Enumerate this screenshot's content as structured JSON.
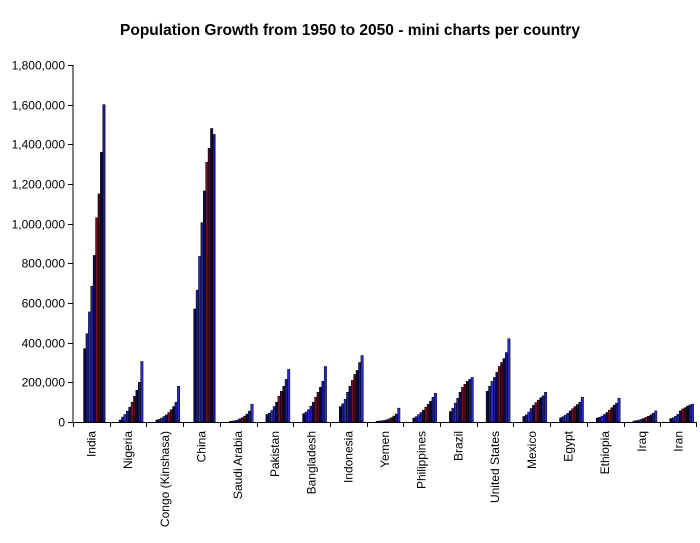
{
  "chart_data": {
    "type": "bar",
    "title": "Population Growth from 1950 to 2050 - mini charts per country",
    "xlabel": "",
    "ylabel": "",
    "ylim": [
      0,
      1800000
    ],
    "yticks": [
      0,
      200000,
      400000,
      600000,
      800000,
      1000000,
      1200000,
      1400000,
      1600000,
      1800000
    ],
    "ytick_labels": [
      "0",
      "200,000",
      "400,000",
      "600,000",
      "800,000",
      "1,000,000",
      "1,200,000",
      "1,400,000",
      "1,600,000",
      "1,800,000"
    ],
    "grid": false,
    "legend": "none",
    "bar_colors": [
      "#0a0a3a",
      "#1a1a8c",
      "#2b2bd0",
      "#1f1f9a",
      "#0c0c55",
      "#7a0f24",
      "#4a0a18"
    ],
    "countries": [
      {
        "name": "India",
        "values": [
          370000,
          445000,
          555000,
          685000,
          840000,
          1030000,
          1150000,
          1360000,
          1600000
        ]
      },
      {
        "name": "Nigeria",
        "values": [
          10000,
          25000,
          38000,
          55000,
          75000,
          100000,
          130000,
          160000,
          200000,
          305000
        ]
      },
      {
        "name": "Congo (Kinshasa)",
        "values": [
          10000,
          14000,
          20000,
          28000,
          36000,
          48000,
          62000,
          78000,
          100000,
          180000
        ]
      },
      {
        "name": "China",
        "values": [
          570000,
          665000,
          835000,
          1005000,
          1165000,
          1310000,
          1380000,
          1480000,
          1450000
        ]
      },
      {
        "name": "Saudi Arabia",
        "values": [
          3000,
          5000,
          7000,
          10000,
          16000,
          22000,
          30000,
          40000,
          55000,
          90000
        ]
      },
      {
        "name": "Pakistan",
        "values": [
          38000,
          45000,
          58000,
          78000,
          100000,
          130000,
          155000,
          180000,
          215000,
          265000
        ]
      },
      {
        "name": "Bangladesh",
        "values": [
          42000,
          50000,
          62000,
          80000,
          100000,
          125000,
          150000,
          175000,
          205000,
          280000
        ]
      },
      {
        "name": "Indonesia",
        "values": [
          78000,
          92000,
          115000,
          150000,
          180000,
          210000,
          240000,
          260000,
          300000,
          335000
        ]
      },
      {
        "name": "Yemen",
        "values": [
          4000,
          5000,
          6000,
          8000,
          11000,
          16000,
          22000,
          30000,
          40000,
          70000
        ]
      },
      {
        "name": "Philippines",
        "values": [
          20000,
          27000,
          37000,
          48000,
          60000,
          75000,
          90000,
          105000,
          125000,
          145000
        ]
      },
      {
        "name": "Brazil",
        "values": [
          53000,
          70000,
          95000,
          120000,
          150000,
          175000,
          190000,
          205000,
          215000,
          225000
        ]
      },
      {
        "name": "United States",
        "values": [
          155000,
          180000,
          205000,
          225000,
          250000,
          280000,
          300000,
          320000,
          350000,
          420000
        ]
      },
      {
        "name": "Mexico",
        "values": [
          28000,
          36000,
          50000,
          68000,
          84000,
          98000,
          110000,
          122000,
          132000,
          150000
        ]
      },
      {
        "name": "Egypt",
        "values": [
          21000,
          27000,
          35000,
          44000,
          56000,
          67000,
          78000,
          88000,
          100000,
          125000
        ]
      },
      {
        "name": "Ethiopia",
        "values": [
          20000,
          24000,
          30000,
          38000,
          48000,
          60000,
          72000,
          85000,
          95000,
          120000
        ]
      },
      {
        "name": "Iraq",
        "values": [
          5000,
          7000,
          10000,
          13000,
          18000,
          23000,
          29000,
          36000,
          44000,
          56000
        ]
      },
      {
        "name": "Iran",
        "values": [
          17000,
          22000,
          29000,
          39000,
          56000,
          66000,
          72000,
          80000,
          86000,
          90000
        ]
      }
    ]
  }
}
